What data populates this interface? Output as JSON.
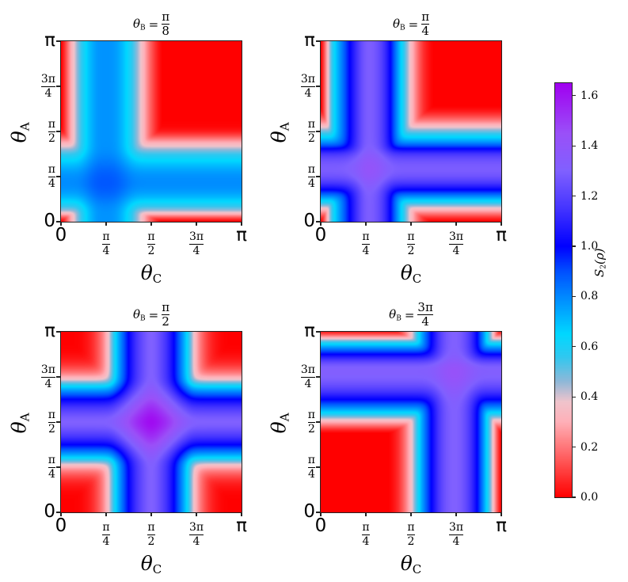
{
  "chart_data": {
    "type": "heatmap",
    "axis_units": "pi",
    "axis_range": [
      0,
      1
    ],
    "ticks": [
      {
        "value": 0,
        "text": "0"
      },
      {
        "value": 0.25,
        "num": "π",
        "den": "4"
      },
      {
        "value": 0.5,
        "num": "π",
        "den": "2"
      },
      {
        "value": 0.75,
        "num": "3π",
        "den": "4"
      },
      {
        "value": 1,
        "text": "π"
      }
    ],
    "xlabel": {
      "symbol": "θ",
      "sub": "C"
    },
    "ylabel": {
      "symbol": "θ",
      "sub": "A"
    },
    "profile_sample_step": 0.0625,
    "panels": [
      {
        "title": {
          "symbol": "θ",
          "sub": "B",
          "eq": "=",
          "num": "π",
          "den": "8"
        },
        "profile_C": [
          0,
          0.33,
          0.6,
          0.75,
          0.78,
          0.75,
          0.62,
          0.4,
          0.15,
          0,
          0,
          0,
          0,
          0,
          0,
          0,
          0
        ],
        "profile_A": [
          0,
          0.45,
          0.68,
          0.78,
          0.78,
          0.7,
          0.55,
          0.3,
          0.05,
          0,
          0,
          0,
          0,
          0,
          0,
          0,
          0
        ],
        "max_value": 0.88
      },
      {
        "title": {
          "symbol": "θ",
          "sub": "B",
          "eq": "=",
          "num": "π",
          "den": "4"
        },
        "profile_C": [
          0,
          0.55,
          0.85,
          1.1,
          1.28,
          1.25,
          1.05,
          0.7,
          0.35,
          0.1,
          0,
          0,
          0,
          0,
          0,
          0,
          0
        ],
        "profile_A": [
          0,
          0.3,
          0.7,
          1.05,
          1.25,
          1.28,
          1.15,
          0.8,
          0.5,
          0.2,
          0.02,
          0,
          0,
          0,
          0,
          0,
          0
        ],
        "max_value": 1.4
      },
      {
        "title": {
          "symbol": "θ",
          "sub": "B",
          "eq": "=",
          "num": "π",
          "den": "2"
        },
        "profile_C": [
          0,
          0,
          0.02,
          0.1,
          0.3,
          0.7,
          1.0,
          1.2,
          1.3,
          1.2,
          1.0,
          0.7,
          0.3,
          0.1,
          0.02,
          0,
          0
        ],
        "profile_A": [
          0,
          0,
          0.02,
          0.1,
          0.3,
          0.7,
          1.0,
          1.2,
          1.3,
          1.2,
          1.0,
          0.7,
          0.3,
          0.1,
          0.02,
          0,
          0
        ],
        "max_value": 1.62
      },
      {
        "title": {
          "symbol": "θ",
          "sub": "B",
          "eq": "=",
          "num": "3π",
          "den": "4"
        },
        "profile_C": [
          0,
          0,
          0,
          0,
          0,
          0,
          0,
          0.1,
          0.35,
          0.75,
          1.05,
          1.25,
          1.3,
          1.2,
          0.95,
          0.5,
          0
        ],
        "profile_A": [
          0,
          0,
          0,
          0,
          0,
          0,
          0,
          0,
          0.3,
          0.7,
          1.0,
          1.2,
          1.3,
          1.28,
          1.0,
          0.6,
          0.05
        ],
        "max_value": 1.42
      }
    ],
    "colorbar": {
      "label": {
        "symbol": "S",
        "sub": "2",
        "rest": "(ρ)"
      },
      "range": [
        0,
        1.65
      ],
      "ticks": [
        "0.0",
        "0.2",
        "0.4",
        "0.6",
        "0.8",
        "1.0",
        "1.2",
        "1.4",
        "1.6"
      ],
      "colormap": [
        [
          0.0,
          "#ff0000"
        ],
        [
          0.15,
          "#ff5a5a"
        ],
        [
          0.3,
          "#ffb0b8"
        ],
        [
          0.38,
          "#f0c4cc"
        ],
        [
          0.46,
          "#90b8d8"
        ],
        [
          0.56,
          "#30c8f0"
        ],
        [
          0.65,
          "#00d8ff"
        ],
        [
          0.8,
          "#0088ff"
        ],
        [
          0.9,
          "#0050ff"
        ],
        [
          1.0,
          "#0000ff"
        ],
        [
          1.15,
          "#4434ff"
        ],
        [
          1.3,
          "#8060ff"
        ],
        [
          1.45,
          "#9a50f8"
        ],
        [
          1.65,
          "#a000f0"
        ]
      ]
    }
  }
}
